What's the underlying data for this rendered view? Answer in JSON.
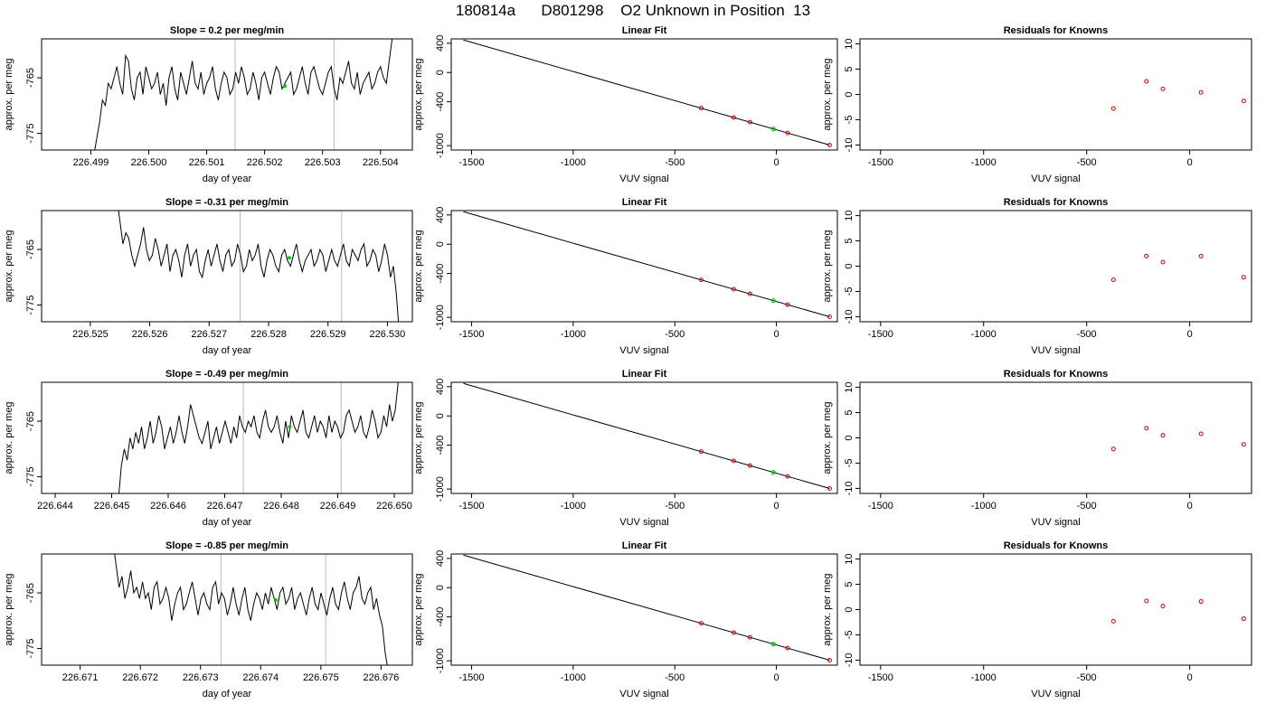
{
  "header": {
    "title": "180814a      D801298    O2 Unknown in Position  13"
  },
  "colors": {
    "line": "#000000",
    "known_points": "#cc0000",
    "unknown_point": "#00cc00",
    "marker_lines": "#bbbbbb",
    "axis": "#000000"
  },
  "chart_data": [
    {
      "row": 1,
      "panel": "time-series",
      "type": "line",
      "title": "Slope =  0.2  per meg/min",
      "xlabel": "day of year",
      "ylabel": "approx. per meg",
      "xlim": [
        226.49815,
        226.50455
      ],
      "ylim": [
        -778,
        -758
      ],
      "xticks": [
        "226.499",
        "226.500",
        "226.501",
        "226.502",
        "226.503",
        "226.504"
      ],
      "yticks": [
        "-765",
        "-775"
      ],
      "x_start": 226.49905,
      "x_end": 226.50425,
      "start_level": -779,
      "end_level": -756,
      "vlines": [
        226.50149,
        226.5032
      ],
      "unknown_point": {
        "x": 226.50235,
        "y": -766.5
      },
      "values": [
        -779,
        -776,
        -773,
        -769,
        -770,
        -766,
        -767,
        -765,
        -763,
        -766,
        -768,
        -761,
        -762,
        -767,
        -769,
        -765,
        -764,
        -768,
        -763,
        -765,
        -767,
        -766,
        -764,
        -768,
        -766,
        -770,
        -765,
        -763,
        -767,
        -769,
        -764,
        -766,
        -768,
        -765,
        -762,
        -766,
        -767,
        -764,
        -768,
        -766,
        -765,
        -763,
        -767,
        -769,
        -766,
        -764,
        -765,
        -768,
        -767,
        -764,
        -766,
        -763,
        -765,
        -768,
        -767,
        -764,
        -766,
        -769,
        -765,
        -764,
        -766,
        -768,
        -765,
        -763,
        -764,
        -767,
        -766,
        -765,
        -764,
        -768,
        -767,
        -765,
        -763,
        -766,
        -768,
        -764,
        -763,
        -765,
        -767,
        -768,
        -766,
        -764,
        -763,
        -767,
        -769,
        -765,
        -766,
        -764,
        -762,
        -766,
        -767,
        -764,
        -768,
        -766,
        -765,
        -764,
        -767,
        -766,
        -764,
        -763,
        -765,
        -766,
        -762,
        -758,
        -756
      ]
    },
    {
      "row": 1,
      "panel": "linear-fit",
      "type": "scatter",
      "title": "Linear Fit",
      "xlabel": "VUV signal",
      "ylabel": "approx. per meg",
      "xlim": [
        -1600,
        300
      ],
      "ylim": [
        -1060,
        460
      ],
      "xticks": [
        -1500,
        -1000,
        -500,
        0
      ],
      "yticks": [
        400,
        0,
        -400,
        -1000
      ],
      "fit_line": {
        "slope": -0.797,
        "intercept": -783,
        "x_from": -1540,
        "x_to": 262
      },
      "known_points": [
        [
          -370,
          -487
        ],
        [
          -210,
          -615
        ],
        [
          -130,
          -679
        ],
        [
          55,
          -827
        ],
        [
          262,
          -992
        ]
      ],
      "unknown_point": [
        -15,
        -771
      ]
    },
    {
      "row": 1,
      "panel": "residuals",
      "type": "scatter",
      "title": "Residuals for Knowns",
      "xlabel": "VUV signal",
      "ylabel": "approx. per meg",
      "xlim": [
        -1600,
        300
      ],
      "ylim": [
        -11,
        11
      ],
      "xticks": [
        -1500,
        -1000,
        -500,
        0
      ],
      "yticks": [
        10,
        5,
        0,
        -5,
        -10
      ],
      "x": [
        -370,
        -210,
        -130,
        55,
        262
      ],
      "y": [
        -2.8,
        2.6,
        1.1,
        0.4,
        -1.3
      ]
    },
    {
      "row": 2,
      "panel": "time-series",
      "type": "line",
      "title": "Slope =  -0.31  per meg/min",
      "xlabel": "day of year",
      "ylabel": "approx. per meg",
      "xlim": [
        226.52418,
        226.53042
      ],
      "ylim": [
        -778,
        -758
      ],
      "xticks": [
        "226.525",
        "226.526",
        "226.527",
        "226.528",
        "226.529",
        "226.530"
      ],
      "yticks": [
        "-765",
        "-775"
      ],
      "x_start": 226.52545,
      "x_end": 226.5302,
      "start_level": -756,
      "end_level": -780,
      "vlines": [
        226.52752,
        226.52923
      ],
      "unknown_point": {
        "x": 226.52835,
        "y": -766.5
      },
      "values": [
        -756,
        -760,
        -764,
        -762,
        -763,
        -766,
        -768,
        -766,
        -764,
        -761,
        -765,
        -767,
        -766,
        -763,
        -765,
        -768,
        -766,
        -764,
        -769,
        -766,
        -765,
        -767,
        -770,
        -766,
        -764,
        -768,
        -766,
        -765,
        -769,
        -770,
        -767,
        -765,
        -768,
        -766,
        -764,
        -767,
        -769,
        -766,
        -765,
        -768,
        -767,
        -764,
        -766,
        -769,
        -768,
        -765,
        -767,
        -766,
        -764,
        -768,
        -770,
        -767,
        -765,
        -766,
        -768,
        -769,
        -766,
        -765,
        -767,
        -768,
        -766,
        -764,
        -767,
        -769,
        -767,
        -766,
        -765,
        -768,
        -767,
        -765,
        -766,
        -769,
        -767,
        -765,
        -767,
        -768,
        -766,
        -764,
        -767,
        -768,
        -765,
        -766,
        -767,
        -765,
        -764,
        -768,
        -767,
        -765,
        -766,
        -769,
        -767,
        -764,
        -766,
        -770,
        -768,
        -773,
        -780
      ]
    },
    {
      "row": 2,
      "panel": "linear-fit",
      "type": "scatter",
      "title": "Linear Fit",
      "xlabel": "VUV signal",
      "ylabel": "approx. per meg",
      "xlim": [
        -1600,
        300
      ],
      "ylim": [
        -1060,
        460
      ],
      "xticks": [
        -1500,
        -1000,
        -500,
        0
      ],
      "yticks": [
        400,
        0,
        -400,
        -1000
      ],
      "fit_line": {
        "slope": -0.797,
        "intercept": -783,
        "x_from": -1540,
        "x_to": 262
      },
      "known_points": [
        [
          -370,
          -487
        ],
        [
          -210,
          -615
        ],
        [
          -130,
          -679
        ],
        [
          55,
          -827
        ],
        [
          262,
          -992
        ]
      ],
      "unknown_point": [
        -15,
        -771
      ]
    },
    {
      "row": 2,
      "panel": "residuals",
      "type": "scatter",
      "title": "Residuals for Knowns",
      "xlabel": "VUV signal",
      "ylabel": "approx. per meg",
      "xlim": [
        -1600,
        300
      ],
      "ylim": [
        -11,
        11
      ],
      "xticks": [
        -1500,
        -1000,
        -500,
        0
      ],
      "yticks": [
        10,
        5,
        0,
        -5,
        -10
      ],
      "x": [
        -370,
        -210,
        -130,
        55,
        262
      ],
      "y": [
        -2.7,
        2.0,
        0.8,
        2.0,
        -2.2
      ]
    },
    {
      "row": 3,
      "panel": "time-series",
      "type": "line",
      "title": "Slope =  -0.49  per meg/min",
      "xlabel": "day of year",
      "ylabel": "approx. per meg",
      "xlim": [
        226.64376,
        226.65032
      ],
      "ylim": [
        -778,
        -758
      ],
      "xticks": [
        "226.644",
        "226.645",
        "226.646",
        "226.647",
        "226.648",
        "226.649",
        "226.650"
      ],
      "yticks": [
        "-765",
        "-775"
      ],
      "x_start": 226.64512,
      "x_end": 226.65012,
      "start_level": -779,
      "end_level": -756,
      "vlines": [
        226.64733,
        226.64906
      ],
      "unknown_point": {
        "x": 226.64815,
        "y": -766
      },
      "values": [
        -779,
        -773,
        -770,
        -772,
        -768,
        -770,
        -767,
        -769,
        -766,
        -770,
        -768,
        -765,
        -769,
        -767,
        -764,
        -766,
        -770,
        -768,
        -766,
        -769,
        -767,
        -764,
        -767,
        -769,
        -766,
        -762,
        -764,
        -766,
        -768,
        -769,
        -767,
        -765,
        -770,
        -768,
        -766,
        -769,
        -767,
        -765,
        -767,
        -769,
        -766,
        -768,
        -764,
        -766,
        -767,
        -765,
        -766,
        -764,
        -767,
        -768,
        -765,
        -763,
        -766,
        -767,
        -766,
        -764,
        -767,
        -769,
        -765,
        -768,
        -764,
        -766,
        -767,
        -765,
        -763,
        -767,
        -768,
        -766,
        -764,
        -767,
        -765,
        -766,
        -768,
        -764,
        -767,
        -765,
        -766,
        -768,
        -767,
        -764,
        -763,
        -765,
        -767,
        -766,
        -764,
        -767,
        -768,
        -766,
        -763,
        -765,
        -768,
        -767,
        -764,
        -766,
        -762,
        -765,
        -763,
        -758,
        -756
      ]
    },
    {
      "row": 3,
      "panel": "linear-fit",
      "type": "scatter",
      "title": "Linear Fit",
      "xlabel": "VUV signal",
      "ylabel": "approx. per meg",
      "xlim": [
        -1600,
        300
      ],
      "ylim": [
        -1060,
        460
      ],
      "xticks": [
        -1500,
        -1000,
        -500,
        0
      ],
      "yticks": [
        400,
        0,
        -400,
        -1000
      ],
      "fit_line": {
        "slope": -0.797,
        "intercept": -783,
        "x_from": -1540,
        "x_to": 262
      },
      "known_points": [
        [
          -370,
          -487
        ],
        [
          -210,
          -615
        ],
        [
          -130,
          -679
        ],
        [
          55,
          -827
        ],
        [
          262,
          -992
        ]
      ],
      "unknown_point": [
        -15,
        -771
      ]
    },
    {
      "row": 3,
      "panel": "residuals",
      "type": "scatter",
      "title": "Residuals for Knowns",
      "xlabel": "VUV signal",
      "ylabel": "approx. per meg",
      "xlim": [
        -1600,
        300
      ],
      "ylim": [
        -11,
        11
      ],
      "xticks": [
        -1500,
        -1000,
        -500,
        0
      ],
      "yticks": [
        10,
        5,
        0,
        -5,
        -10
      ],
      "x": [
        -370,
        -210,
        -130,
        55,
        262
      ],
      "y": [
        -2.2,
        1.9,
        0.5,
        0.8,
        -1.3
      ]
    },
    {
      "row": 4,
      "panel": "time-series",
      "type": "line",
      "title": "Slope =  -0.85  per meg/min",
      "xlabel": "day of year",
      "ylabel": "approx. per meg",
      "xlim": [
        226.67036,
        226.67652
      ],
      "ylim": [
        -778,
        -758
      ],
      "xticks": [
        "226.671",
        "226.672",
        "226.673",
        "226.674",
        "226.675",
        "226.676"
      ],
      "yticks": [
        "-765",
        "-775"
      ],
      "x_start": 226.67155,
      "x_end": 226.67612,
      "start_level": -756,
      "end_level": -779,
      "vlines": [
        226.67334,
        226.67508
      ],
      "unknown_point": {
        "x": 226.67425,
        "y": -766.3
      },
      "values": [
        -756,
        -760,
        -764,
        -762,
        -766,
        -764,
        -761,
        -765,
        -764,
        -766,
        -763,
        -766,
        -765,
        -768,
        -764,
        -763,
        -767,
        -766,
        -764,
        -766,
        -770,
        -767,
        -765,
        -764,
        -768,
        -767,
        -765,
        -763,
        -766,
        -769,
        -766,
        -765,
        -767,
        -768,
        -764,
        -763,
        -767,
        -765,
        -766,
        -769,
        -767,
        -764,
        -767,
        -769,
        -766,
        -764,
        -768,
        -770,
        -767,
        -765,
        -766,
        -768,
        -765,
        -767,
        -764,
        -766,
        -768,
        -765,
        -764,
        -767,
        -766,
        -764,
        -768,
        -766,
        -765,
        -767,
        -769,
        -766,
        -764,
        -767,
        -768,
        -765,
        -767,
        -769,
        -766,
        -764,
        -767,
        -768,
        -765,
        -763,
        -766,
        -768,
        -765,
        -764,
        -762,
        -766,
        -767,
        -765,
        -764,
        -768,
        -766,
        -769,
        -771,
        -776,
        -779
      ]
    },
    {
      "row": 4,
      "panel": "linear-fit",
      "type": "scatter",
      "title": "Linear Fit",
      "xlabel": "VUV signal",
      "ylabel": "approx. per meg",
      "xlim": [
        -1600,
        300
      ],
      "ylim": [
        -1060,
        460
      ],
      "xticks": [
        -1500,
        -1000,
        -500,
        0
      ],
      "yticks": [
        400,
        0,
        -400,
        -1000
      ],
      "fit_line": {
        "slope": -0.797,
        "intercept": -783,
        "x_from": -1540,
        "x_to": 262
      },
      "known_points": [
        [
          -370,
          -487
        ],
        [
          -210,
          -615
        ],
        [
          -130,
          -679
        ],
        [
          55,
          -827
        ],
        [
          262,
          -992
        ]
      ],
      "unknown_point": [
        -15,
        -771
      ]
    },
    {
      "row": 4,
      "panel": "residuals",
      "type": "scatter",
      "title": "Residuals for Knowns",
      "xlabel": "VUV signal",
      "ylabel": "approx. per meg",
      "xlim": [
        -1600,
        300
      ],
      "ylim": [
        -11,
        11
      ],
      "xticks": [
        -1500,
        -1000,
        -500,
        0
      ],
      "yticks": [
        10,
        5,
        0,
        -5,
        -10
      ],
      "x": [
        -370,
        -210,
        -130,
        55,
        262
      ],
      "y": [
        -2.3,
        1.7,
        0.7,
        1.6,
        -1.8
      ]
    }
  ]
}
